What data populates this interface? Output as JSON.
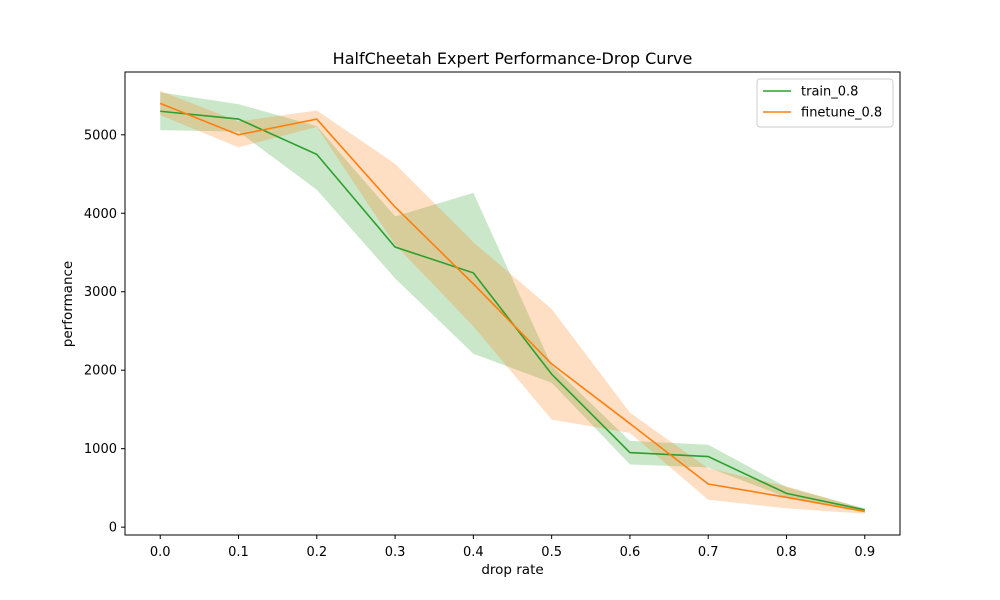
{
  "chart_data": {
    "type": "line",
    "title": "HalfCheetah Expert Performance-Drop Curve",
    "xlabel": "drop rate",
    "ylabel": "performance",
    "xlim": [
      -0.045,
      0.945
    ],
    "ylim": [
      -100,
      5800
    ],
    "x_ticks": [
      0.0,
      0.1,
      0.2,
      0.3,
      0.4,
      0.5,
      0.6,
      0.7,
      0.8,
      0.9
    ],
    "x_tick_labels": [
      "0.0",
      "0.1",
      "0.2",
      "0.3",
      "0.4",
      "0.5",
      "0.6",
      "0.7",
      "0.8",
      "0.9"
    ],
    "y_ticks": [
      0,
      1000,
      2000,
      3000,
      4000,
      5000
    ],
    "y_tick_labels": [
      "0",
      "1000",
      "2000",
      "3000",
      "4000",
      "5000"
    ],
    "grid": false,
    "legend_position": "top-right",
    "series": [
      {
        "name": "train_0.8",
        "color": "#2ca02c",
        "x": [
          0.0,
          0.1,
          0.2,
          0.3,
          0.4,
          0.5,
          0.6,
          0.7,
          0.8,
          0.9
        ],
        "values": [
          5300,
          5200,
          4750,
          3570,
          3240,
          1950,
          950,
          900,
          430,
          220
        ],
        "lower": [
          5060,
          5040,
          4300,
          3170,
          2210,
          1840,
          800,
          760,
          380,
          190
        ],
        "upper": [
          5540,
          5390,
          5110,
          3960,
          4260,
          2060,
          1100,
          1050,
          510,
          240
        ]
      },
      {
        "name": "finetune_0.8",
        "color": "#ff7f0e",
        "x": [
          0.0,
          0.1,
          0.2,
          0.3,
          0.4,
          0.5,
          0.6,
          0.7,
          0.8,
          0.9
        ],
        "values": [
          5400,
          5000,
          5200,
          4080,
          3100,
          2080,
          1320,
          550,
          380,
          200
        ],
        "lower": [
          5250,
          4840,
          5100,
          3600,
          2560,
          1370,
          1200,
          350,
          240,
          170
        ],
        "upper": [
          5560,
          5170,
          5310,
          4630,
          3630,
          2780,
          1460,
          750,
          520,
          230
        ]
      }
    ]
  }
}
